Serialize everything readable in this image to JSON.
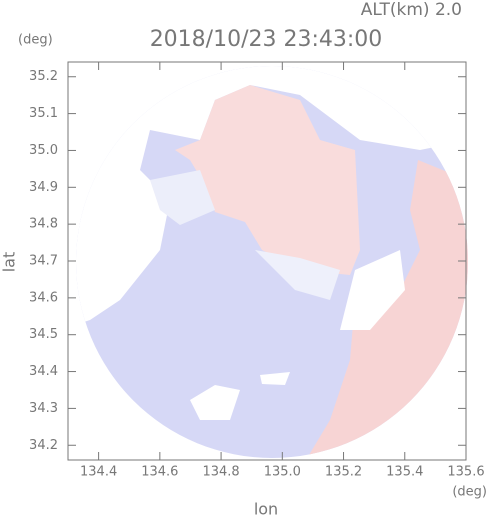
{
  "chart_data": {
    "type": "radar-map",
    "title": "2018/10/23 23:43:00",
    "subtitle": "ALT(km) 2.0",
    "x_label": "lon",
    "x_unit": "(deg)",
    "y_label": "lat",
    "y_unit": "(deg)",
    "xlim": [
      134.3,
      135.6
    ],
    "ylim": [
      34.16,
      35.24
    ],
    "xticks": [
      134.4,
      134.6,
      134.8,
      {
        "value": 135,
        "label": "135.0"
      },
      135.2,
      135.4,
      135.6
    ],
    "yticks": [
      34.2,
      34.3,
      34.4,
      34.5,
      34.6,
      34.7,
      34.8,
      34.9,
      {
        "value": 35,
        "label": "35.0"
      },
      35.1,
      35.2
    ]
  }
}
